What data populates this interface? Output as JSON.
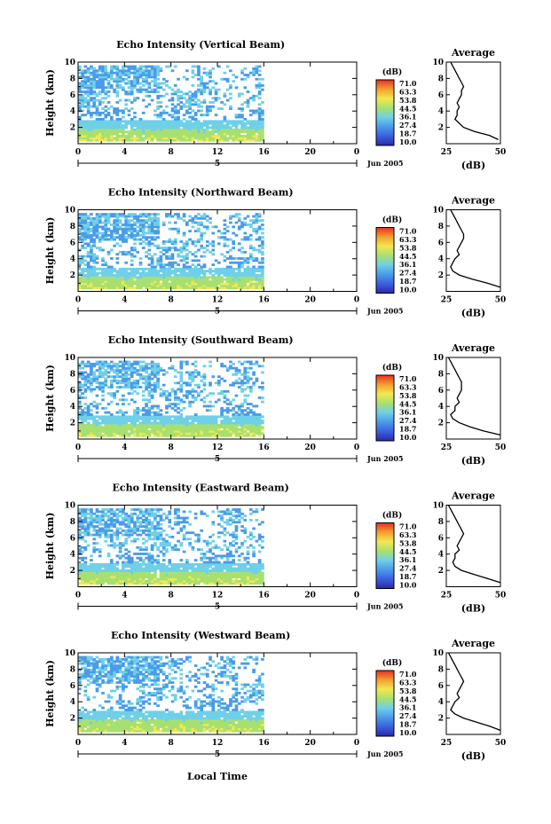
{
  "figure": {
    "bottom_xlabel": "Local Time",
    "date_label": "Jun 2005",
    "day_marker": "5"
  },
  "colorbar": {
    "unit": "(dB)",
    "ticks": [
      "71.0",
      "63.3",
      "53.8",
      "44.5",
      "36.1",
      "27.4",
      "18.7",
      "10.0"
    ],
    "range": [
      10.0,
      71.0
    ],
    "colors": [
      "#2a2aa8",
      "#3b5fe0",
      "#4a9be8",
      "#6fd0e8",
      "#a8e070",
      "#f2e850",
      "#f2a030",
      "#e83020"
    ]
  },
  "chart_data": [
    {
      "type": "heatmap",
      "title": "Echo Intensity (Vertical Beam)",
      "ylabel": "Height (km)",
      "xlabel": "",
      "xlim": [
        0,
        24
      ],
      "ylim": [
        0,
        10
      ],
      "xticks": [
        "0",
        "4",
        "8",
        "12",
        "16",
        "20",
        "0"
      ],
      "yticks": [
        "2",
        "4",
        "6",
        "8",
        "10"
      ],
      "data_end_hour": 16,
      "profile": {
        "title": "Average",
        "xlabel": "(dB)",
        "xlim": [
          25,
          50
        ],
        "xticks": [
          "25",
          "50"
        ],
        "heights": [
          0.5,
          1,
          1.5,
          2,
          2.5,
          3,
          3.5,
          4,
          4.5,
          5,
          5.5,
          6,
          6.5,
          7,
          7.5,
          8,
          8.5,
          9,
          9.5,
          10
        ],
        "values": [
          49,
          45,
          38,
          33,
          31,
          29,
          30,
          30,
          31,
          30,
          31,
          32,
          32,
          33,
          32,
          31,
          30,
          29,
          28,
          27
        ]
      }
    },
    {
      "type": "heatmap",
      "title": "Echo Intensity (Northward Beam)",
      "ylabel": "Height (km)",
      "xlabel": "",
      "xlim": [
        0,
        24
      ],
      "ylim": [
        0,
        10
      ],
      "xticks": [
        "0",
        "4",
        "8",
        "12",
        "16",
        "20",
        "0"
      ],
      "yticks": [
        "2",
        "4",
        "6",
        "8",
        "10"
      ],
      "data_end_hour": 16,
      "profile": {
        "title": "Average",
        "xlabel": "(dB)",
        "xlim": [
          25,
          50
        ],
        "xticks": [
          "25",
          "50"
        ],
        "heights": [
          0.5,
          1,
          1.5,
          2,
          2.5,
          3,
          3.5,
          4,
          4.5,
          5,
          5.5,
          6,
          6.5,
          7,
          7.5,
          8,
          8.5,
          9,
          9.5,
          10
        ],
        "values": [
          50,
          44,
          37,
          31,
          28,
          27,
          28,
          29,
          31,
          30,
          31,
          32,
          33,
          33,
          32,
          31,
          30,
          29,
          28,
          27
        ]
      }
    },
    {
      "type": "heatmap",
      "title": "Echo Intensity (Southward Beam)",
      "ylabel": "Height (km)",
      "xlabel": "",
      "xlim": [
        0,
        24
      ],
      "ylim": [
        0,
        10
      ],
      "xticks": [
        "0",
        "4",
        "8",
        "12",
        "16",
        "20",
        "0"
      ],
      "yticks": [
        "2",
        "4",
        "6",
        "8",
        "10"
      ],
      "data_end_hour": 16,
      "profile": {
        "title": "Average",
        "xlabel": "(dB)",
        "xlim": [
          25,
          50
        ],
        "xticks": [
          "25",
          "50"
        ],
        "heights": [
          0.5,
          1,
          1.5,
          2,
          2.5,
          3,
          3.5,
          4,
          4.5,
          5,
          5.5,
          6,
          6.5,
          7,
          7.5,
          8,
          8.5,
          9,
          9.5,
          10
        ],
        "values": [
          50,
          42,
          36,
          31,
          28,
          27,
          29,
          29,
          31,
          30,
          31,
          32,
          32,
          32,
          31,
          30,
          29,
          28,
          27,
          26
        ]
      }
    },
    {
      "type": "heatmap",
      "title": "Echo Intensity (Eastward Beam)",
      "ylabel": "Height (km)",
      "xlabel": "",
      "xlim": [
        0,
        24
      ],
      "ylim": [
        0,
        10
      ],
      "xticks": [
        "0",
        "4",
        "8",
        "12",
        "16",
        "20",
        "0"
      ],
      "yticks": [
        "2",
        "4",
        "6",
        "8",
        "10"
      ],
      "data_end_hour": 16,
      "profile": {
        "title": "Average",
        "xlabel": "(dB)",
        "xlim": [
          25,
          50
        ],
        "xticks": [
          "25",
          "50"
        ],
        "heights": [
          0.5,
          1,
          1.5,
          2,
          2.5,
          3,
          3.5,
          4,
          4.5,
          5,
          5.5,
          6,
          6.5,
          7,
          7.5,
          8,
          8.5,
          9,
          9.5,
          10
        ],
        "values": [
          50,
          44,
          38,
          32,
          29,
          28,
          29,
          29,
          31,
          30,
          31,
          32,
          33,
          32,
          31,
          30,
          29,
          28,
          27,
          26
        ]
      }
    },
    {
      "type": "heatmap",
      "title": "Echo Intensity (Westward Beam)",
      "ylabel": "Height (km)",
      "xlabel": "Local Time",
      "xlim": [
        0,
        24
      ],
      "ylim": [
        0,
        10
      ],
      "xticks": [
        "0",
        "4",
        "8",
        "12",
        "16",
        "20",
        "0"
      ],
      "yticks": [
        "2",
        "4",
        "6",
        "8",
        "10"
      ],
      "data_end_hour": 16,
      "profile": {
        "title": "Average",
        "xlabel": "(dB)",
        "xlim": [
          25,
          50
        ],
        "xticks": [
          "25",
          "50"
        ],
        "heights": [
          0.5,
          1,
          1.5,
          2,
          2.5,
          3,
          3.5,
          4,
          4.5,
          5,
          5.5,
          6,
          6.5,
          7,
          7.5,
          8,
          8.5,
          9,
          9.5,
          10
        ],
        "values": [
          50,
          45,
          39,
          33,
          29,
          27,
          28,
          29,
          31,
          30,
          31,
          32,
          33,
          32,
          31,
          30,
          29,
          28,
          27,
          26
        ]
      }
    }
  ]
}
